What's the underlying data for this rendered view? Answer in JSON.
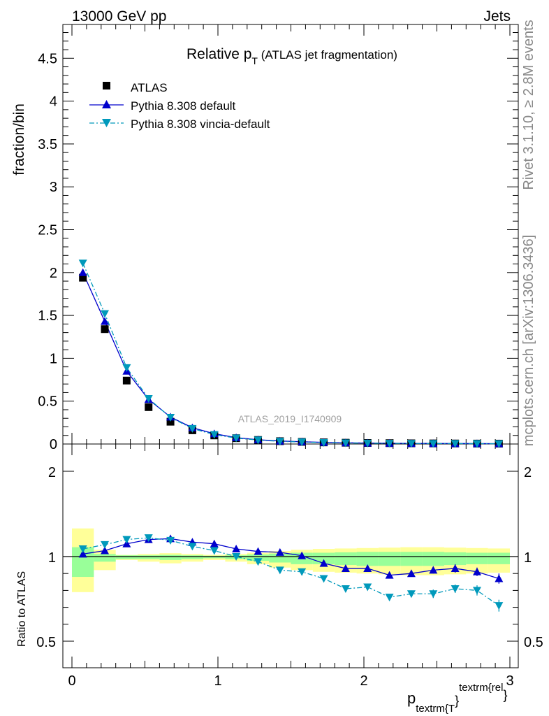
{
  "header": {
    "left": "13000 GeV pp",
    "right": "Jets"
  },
  "title": {
    "main": "Relative p",
    "sub": "T",
    "rest": " (ATLAS jet fragmentation)"
  },
  "side_text": {
    "rivet": "Rivet 3.1.10, ≥ 2.8M events",
    "site": "mcplots.cern.ch [arXiv:1306.3436]"
  },
  "watermark": "ATLAS_2019_I1740909",
  "colors": {
    "data": "#000000",
    "default": "#0000cc",
    "vincia": "#0099bb",
    "band_inner": "#99ff99",
    "band_outer": "#ffff99"
  },
  "legend": [
    {
      "label": "ATLAS"
    },
    {
      "label": "Pythia 8.308 default"
    },
    {
      "label": "Pythia 8.308 vincia-default"
    }
  ],
  "xaxis": {
    "label_base": "p",
    "label_sub": "textrm{T",
    "label_brace": "}",
    "label_sup": "textrm{rel",
    "label_end": "}",
    "ticks": [
      "0",
      "1",
      "2",
      "3"
    ]
  },
  "chart_data": [
    {
      "type": "scatter",
      "title": "Relative pT (ATLAS jet fragmentation)",
      "ylabel": "fraction/bin",
      "ylim": [
        0,
        4.9
      ],
      "xlim": [
        -0.06,
        3.06
      ],
      "yticks": [
        "0",
        "0.5",
        "1",
        "1.5",
        "2",
        "2.5",
        "3",
        "3.5",
        "4",
        "4.5"
      ],
      "bin_edges": [
        0,
        0.15,
        0.3,
        0.45,
        0.6,
        0.75,
        0.9,
        1.05,
        1.2,
        1.35,
        1.5,
        1.65,
        1.8,
        1.95,
        2.1,
        2.25,
        2.4,
        2.55,
        2.7,
        2.85,
        3.0
      ],
      "x": [
        0.075,
        0.225,
        0.375,
        0.525,
        0.675,
        0.825,
        0.975,
        1.125,
        1.275,
        1.425,
        1.575,
        1.725,
        1.875,
        2.025,
        2.175,
        2.325,
        2.475,
        2.625,
        2.775,
        2.925
      ],
      "series": [
        {
          "name": "ATLAS",
          "values": [
            1.94,
            1.34,
            0.74,
            0.43,
            0.26,
            0.16,
            0.1,
            0.068,
            0.047,
            0.033,
            0.025,
            0.019,
            0.015,
            0.012,
            0.01,
            0.008,
            0.007,
            0.006,
            0.005,
            0.0045
          ]
        },
        {
          "name": "Pythia 8.308 default",
          "values": [
            2.0,
            1.43,
            0.85,
            0.52,
            0.315,
            0.19,
            0.12,
            0.074,
            0.05,
            0.035,
            0.026,
            0.019,
            0.014,
            0.011,
            0.009,
            0.0074,
            0.0066,
            0.0056,
            0.0047,
            0.004
          ]
        },
        {
          "name": "Pythia 8.308 vincia-default",
          "values": [
            2.11,
            1.52,
            0.89,
            0.53,
            0.31,
            0.18,
            0.11,
            0.069,
            0.046,
            0.031,
            0.023,
            0.016,
            0.012,
            0.0094,
            0.0076,
            0.0063,
            0.0055,
            0.0049,
            0.0041,
            0.0033
          ]
        }
      ]
    },
    {
      "type": "line",
      "ylabel": "Ratio to ATLAS",
      "ylim": [
        0.34,
        2.3
      ],
      "yticks": [
        "0.5",
        "1",
        "2"
      ],
      "x": [
        0.075,
        0.225,
        0.375,
        0.525,
        0.675,
        0.825,
        0.975,
        1.125,
        1.275,
        1.425,
        1.575,
        1.725,
        1.875,
        2.025,
        2.175,
        2.325,
        2.475,
        2.625,
        2.775,
        2.925
      ],
      "series": [
        {
          "name": "Pythia 8.308 default",
          "values": [
            1.03,
            1.07,
            1.15,
            1.2,
            1.21,
            1.17,
            1.15,
            1.09,
            1.06,
            1.05,
            1.01,
            0.96,
            0.93,
            0.93,
            0.89,
            0.9,
            0.92,
            0.93,
            0.91,
            0.87
          ],
          "err": [
            0,
            0,
            0,
            0,
            0,
            0,
            0,
            0,
            0,
            0,
            0,
            0,
            0,
            0,
            0.01,
            0.015,
            0.02,
            0.025,
            0.025,
            0.03
          ]
        },
        {
          "name": "Pythia 8.308 vincia-default",
          "values": [
            1.09,
            1.14,
            1.2,
            1.22,
            1.19,
            1.12,
            1.07,
            1.0,
            0.97,
            0.92,
            0.91,
            0.87,
            0.81,
            0.82,
            0.76,
            0.78,
            0.78,
            0.81,
            0.8,
            0.71
          ],
          "err": [
            0,
            0,
            0,
            0,
            0,
            0,
            0,
            0,
            0,
            0,
            0,
            0,
            0.01,
            0.01,
            0.015,
            0.02,
            0.025,
            0.025,
            0.03,
            0.035
          ]
        }
      ],
      "band_inner": [
        [
          0.88,
          1.11
        ],
        [
          0.97,
          1.03
        ],
        [
          0.985,
          1.015
        ],
        [
          0.985,
          1.015
        ],
        [
          0.98,
          1.02
        ],
        [
          0.985,
          1.015
        ],
        [
          0.99,
          1.01
        ],
        [
          0.985,
          1.015
        ],
        [
          0.975,
          1.025
        ],
        [
          0.965,
          1.035
        ],
        [
          0.955,
          1.045
        ],
        [
          0.955,
          1.045
        ],
        [
          0.95,
          1.05
        ],
        [
          0.945,
          1.055
        ],
        [
          0.945,
          1.055
        ],
        [
          0.945,
          1.055
        ],
        [
          0.945,
          1.055
        ],
        [
          0.95,
          1.05
        ],
        [
          0.955,
          1.045
        ],
        [
          0.955,
          1.045
        ]
      ],
      "band_outer": [
        [
          0.79,
          1.33
        ],
        [
          0.92,
          1.08
        ],
        [
          0.98,
          1.02
        ],
        [
          0.97,
          1.03
        ],
        [
          0.96,
          1.04
        ],
        [
          0.97,
          1.03
        ],
        [
          0.98,
          1.02
        ],
        [
          0.97,
          1.03
        ],
        [
          0.955,
          1.045
        ],
        [
          0.935,
          1.065
        ],
        [
          0.92,
          1.08
        ],
        [
          0.91,
          1.09
        ],
        [
          0.905,
          1.095
        ],
        [
          0.9,
          1.1
        ],
        [
          0.895,
          1.105
        ],
        [
          0.89,
          1.11
        ],
        [
          0.89,
          1.11
        ],
        [
          0.895,
          1.105
        ],
        [
          0.9,
          1.1
        ],
        [
          0.905,
          1.095
        ]
      ]
    }
  ]
}
